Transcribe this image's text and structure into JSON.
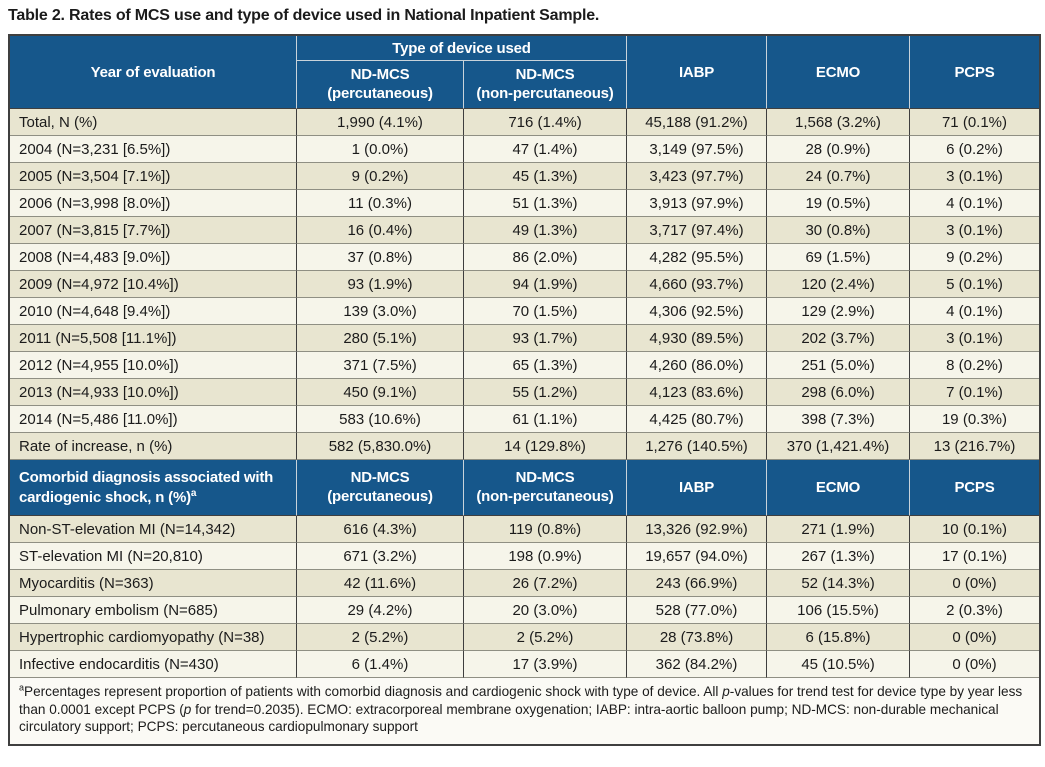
{
  "title": "Table 2. Rates of MCS use and type of device used in National Inpatient Sample.",
  "colors": {
    "header_blue": "#16578b",
    "row_beige": "#e8e5d0",
    "row_light": "#f6f5ea",
    "header_text": "#ffffff",
    "body_text": "#1b1b1b",
    "border_dark": "#3f3f3f",
    "row_divider": "#8f8f83"
  },
  "table": {
    "header": {
      "year_col": "Year of evaluation",
      "device_group": "Type of device used",
      "nd_mcs_percutaneous": "ND-MCS\n(percutaneous)",
      "nd_mcs_non_percutaneous": "ND-MCS\n(non-percutaneous)",
      "iabp": "IABP",
      "ecmo": "ECMO",
      "pcps": "PCPS"
    },
    "section1_rows": [
      [
        "Total, N (%)",
        "1,990 (4.1%)",
        "716 (1.4%)",
        "45,188 (91.2%)",
        "1,568 (3.2%)",
        "71 (0.1%)"
      ],
      [
        "2004 (N=3,231 [6.5%])",
        "1 (0.0%)",
        "47 (1.4%)",
        "3,149 (97.5%)",
        "28 (0.9%)",
        "6 (0.2%)"
      ],
      [
        "2005 (N=3,504 [7.1%])",
        "9 (0.2%)",
        "45 (1.3%)",
        "3,423 (97.7%)",
        "24 (0.7%)",
        "3 (0.1%)"
      ],
      [
        "2006 (N=3,998 [8.0%])",
        "11 (0.3%)",
        "51 (1.3%)",
        "3,913 (97.9%)",
        "19 (0.5%)",
        "4 (0.1%)"
      ],
      [
        "2007 (N=3,815 [7.7%])",
        "16 (0.4%)",
        "49 (1.3%)",
        "3,717 (97.4%)",
        "30 (0.8%)",
        "3 (0.1%)"
      ],
      [
        "2008 (N=4,483 [9.0%])",
        "37 (0.8%)",
        "86 (2.0%)",
        "4,282 (95.5%)",
        "69 (1.5%)",
        "9 (0.2%)"
      ],
      [
        "2009 (N=4,972 [10.4%])",
        "93 (1.9%)",
        "94 (1.9%)",
        "4,660 (93.7%)",
        "120 (2.4%)",
        "5 (0.1%)"
      ],
      [
        "2010 (N=4,648 [9.4%])",
        "139 (3.0%)",
        "70 (1.5%)",
        "4,306 (92.5%)",
        "129 (2.9%)",
        "4 (0.1%)"
      ],
      [
        "2011 (N=5,508 [11.1%])",
        "280 (5.1%)",
        "93 (1.7%)",
        "4,930 (89.5%)",
        "202 (3.7%)",
        "3 (0.1%)"
      ],
      [
        "2012 (N=4,955 [10.0%])",
        "371 (7.5%)",
        "65 (1.3%)",
        "4,260 (86.0%)",
        "251 (5.0%)",
        "8 (0.2%)"
      ],
      [
        "2013 (N=4,933 [10.0%])",
        "450 (9.1%)",
        "55 (1.2%)",
        "4,123 (83.6%)",
        "298 (6.0%)",
        "7 (0.1%)"
      ],
      [
        "2014 (N=5,486 [11.0%])",
        "583 (10.6%)",
        "61 (1.1%)",
        "4,425 (80.7%)",
        "398 (7.3%)",
        "19 (0.3%)"
      ],
      [
        "Rate of increase, n (%)",
        "582 (5,830.0%)",
        "14 (129.8%)",
        "1,276 (140.5%)",
        "370 (1,421.4%)",
        "13 (216.7%)"
      ]
    ],
    "section2_header": {
      "label": "Comorbid diagnosis associated with cardiogenic shock, n (%)",
      "sup": "a",
      "nd_mcs_percutaneous": "ND-MCS\n(percutaneous)",
      "nd_mcs_non_percutaneous": "ND-MCS\n(non-percutaneous)",
      "iabp": "IABP",
      "ecmo": "ECMO",
      "pcps": "PCPS"
    },
    "section2_rows": [
      [
        "Non-ST-elevation MI (N=14,342)",
        "616 (4.3%)",
        "119 (0.8%)",
        "13,326 (92.9%)",
        "271 (1.9%)",
        "10 (0.1%)"
      ],
      [
        "ST-elevation MI (N=20,810)",
        "671 (3.2%)",
        "198 (0.9%)",
        "19,657 (94.0%)",
        "267 (1.3%)",
        "17 (0.1%)"
      ],
      [
        "Myocarditis (N=363)",
        "42 (11.6%)",
        "26 (7.2%)",
        "243 (66.9%)",
        "52 (14.3%)",
        "0 (0%)"
      ],
      [
        "Pulmonary embolism (N=685)",
        "29 (4.2%)",
        "20 (3.0%)",
        "528 (77.0%)",
        "106 (15.5%)",
        "2 (0.3%)"
      ],
      [
        "Hypertrophic cardiomyopathy (N=38)",
        "2 (5.2%)",
        "2 (5.2%)",
        "28 (73.8%)",
        "6 (15.8%)",
        "0 (0%)"
      ],
      [
        "Infective endocarditis (N=430)",
        "6 (1.4%)",
        "17 (3.9%)",
        "362 (84.2%)",
        "45 (10.5%)",
        "0 (0%)"
      ]
    ],
    "footnote": {
      "sup": "a",
      "part1": "Percentages represent proportion of patients with comorbid diagnosis and cardiogenic shock with type of device. All ",
      "italic1": "p",
      "part2": "-values for trend test for device type by year less than 0.0001 except PCPS (",
      "italic2": "p",
      "part3": " for trend=0.2035). ECMO: extracorporeal membrane oxygenation; IABP: intra-aortic balloon pump; ND-MCS: non-durable mechanical circulatory support; PCPS: percutaneous cardiopulmonary support"
    }
  }
}
